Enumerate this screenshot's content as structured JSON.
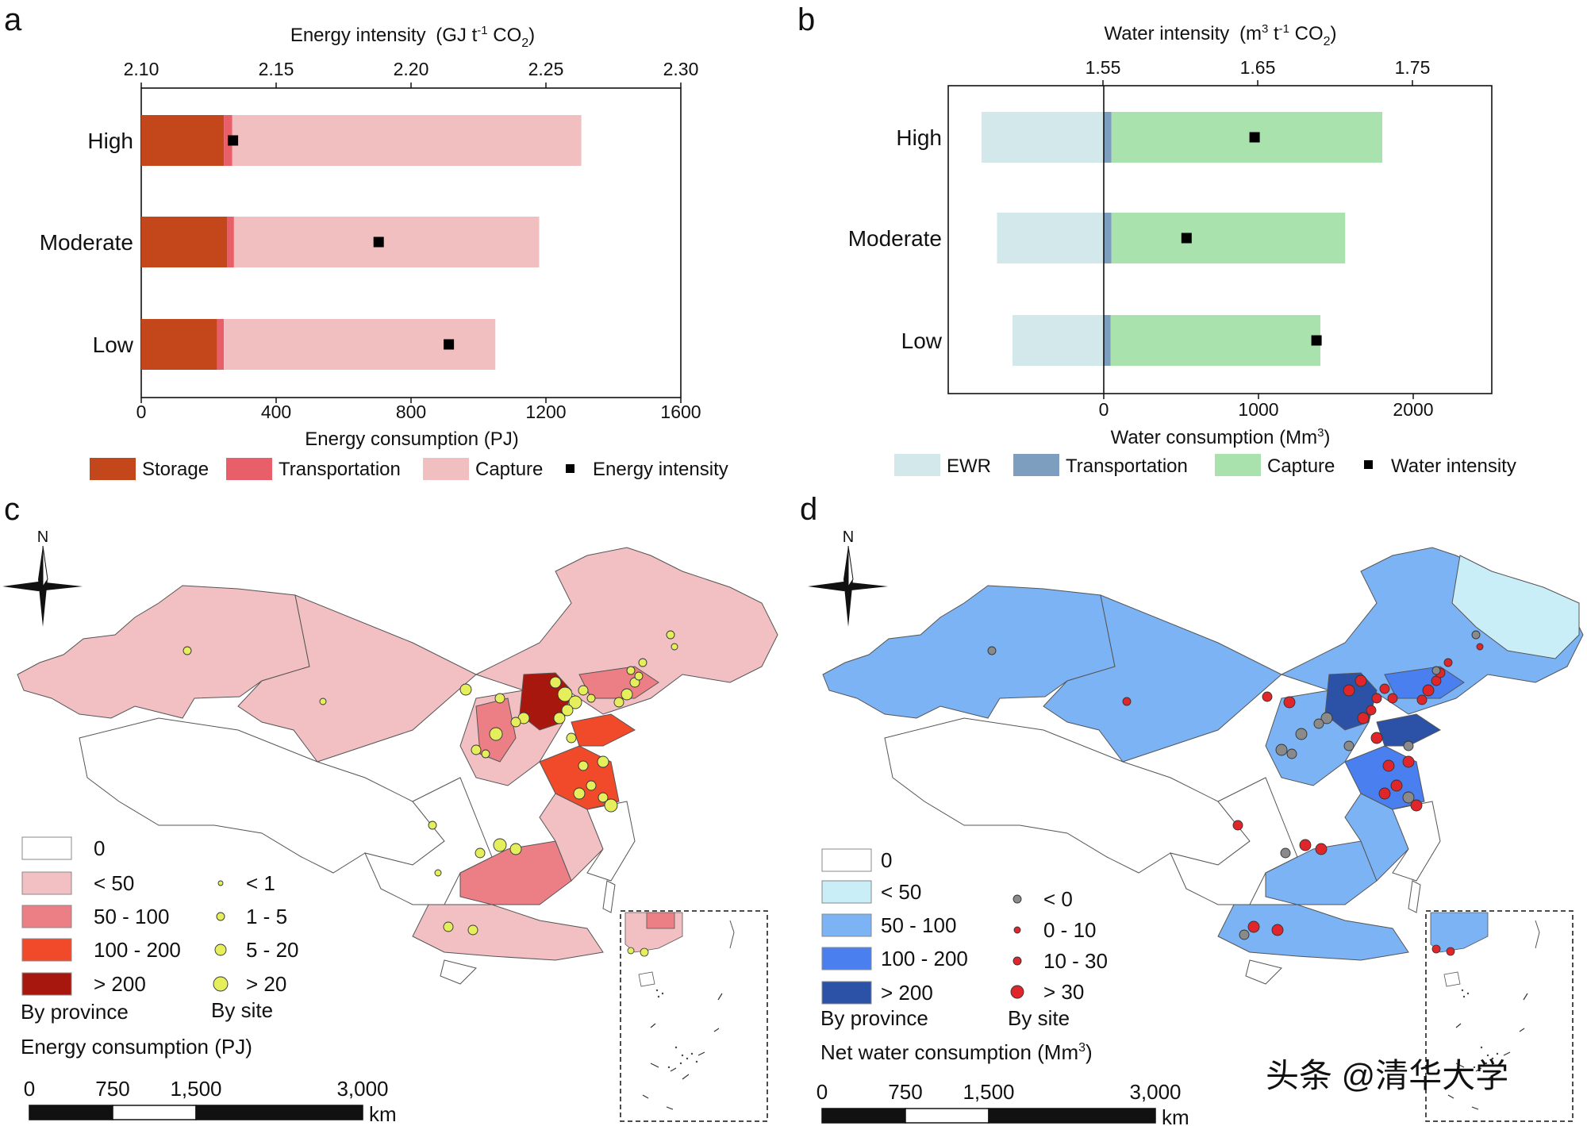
{
  "chart_data": [
    {
      "panel": "a",
      "type": "bar",
      "orientation": "horizontal",
      "stacked": true,
      "categories": [
        "High",
        "Moderate",
        "Low"
      ],
      "series": [
        {
          "name": "Storage",
          "color": "#c4471c",
          "values": [
            245,
            255,
            225
          ]
        },
        {
          "name": "Transportation",
          "color": "#e85f6a",
          "values": [
            25,
            20,
            20
          ]
        },
        {
          "name": "Capture",
          "color": "#f1bfc0",
          "values": [
            1035,
            905,
            805
          ]
        }
      ],
      "xlabel": "Energy consumption (PJ)",
      "xlim": [
        0,
        1600
      ],
      "xticks": [
        "0",
        "400",
        "800",
        "1200",
        "1600"
      ],
      "secondary_axis": {
        "label": "Energy intensity",
        "unit_text": "(GJ t",
        "unit_sup": "-1",
        "unit_tail": " CO",
        "unit_sub": "2",
        "unit_close": ")",
        "lim": [
          2.1,
          2.3
        ],
        "ticks": [
          "2.10",
          "2.15",
          "2.20",
          "2.25",
          "2.30"
        ]
      },
      "markers": {
        "name": "Energy intensity",
        "color": "#000000",
        "values": [
          2.134,
          2.188,
          2.214
        ]
      },
      "legend": [
        "Storage",
        "Transportation",
        "Capture",
        "Energy intensity"
      ]
    },
    {
      "panel": "b",
      "type": "bar",
      "orientation": "horizontal",
      "stacked": true,
      "categories": [
        "High",
        "Moderate",
        "Low"
      ],
      "series": [
        {
          "name": "EWR",
          "color": "#d2e8ea",
          "values": [
            -790,
            -690,
            -590
          ]
        },
        {
          "name": "Transportation",
          "color": "#7e9ec0",
          "values": [
            50,
            50,
            45
          ]
        },
        {
          "name": "Capture",
          "color": "#aae2ad",
          "values": [
            1750,
            1510,
            1355
          ]
        }
      ],
      "xlabel_text": "Water consumption (Mm",
      "xlabel_sup": "3",
      "xlabel_close": ")",
      "xlim": [
        -1000,
        2500
      ],
      "xticks": [
        "0",
        "1000",
        "2000"
      ],
      "secondary_axis": {
        "label": "Water intensity",
        "unit_text": "(m",
        "unit_sup": "3",
        "unit_mid": " t",
        "unit_sup2": "-1",
        "unit_tail": " CO",
        "unit_sub": "2",
        "unit_close": ")",
        "lim": [
          1.55,
          1.75
        ],
        "ticks": [
          "1.55",
          "1.65",
          "1.75"
        ]
      },
      "markers": {
        "name": "Water intensity",
        "color": "#000000",
        "values": [
          1.648,
          1.604,
          1.688
        ]
      },
      "legend": [
        "EWR",
        "Transportation",
        "Capture",
        "Water intensity"
      ]
    }
  ],
  "panels": {
    "a": "a",
    "b": "b",
    "c": "c",
    "d": "d"
  },
  "map_c": {
    "north": "N",
    "province_legend": [
      {
        "label": "0",
        "color": "#ffffff"
      },
      {
        "label": "< 50",
        "color": "#f2c0c3"
      },
      {
        "label": "50 - 100",
        "color": "#ec7f85"
      },
      {
        "label": "100 - 200",
        "color": "#f04a2a"
      },
      {
        "label": "> 200",
        "color": "#a8170d"
      }
    ],
    "site_legend": [
      {
        "label": "< 1"
      },
      {
        "label": "1 - 5"
      },
      {
        "label": "5 - 20"
      },
      {
        "label": "> 20"
      }
    ],
    "site_color": "#e5ef5c",
    "by_province": "By province",
    "by_site": "By site",
    "title": "Energy consumption (PJ)",
    "scale_ticks": [
      "0",
      "750",
      "1,500",
      "3,000"
    ],
    "scale_unit": "km"
  },
  "map_d": {
    "north": "N",
    "province_legend": [
      {
        "label": "0",
        "color": "#ffffff"
      },
      {
        "label": "< 50",
        "color": "#c9eef8"
      },
      {
        "label": "50 - 100",
        "color": "#7bb3f5"
      },
      {
        "label": "100 - 200",
        "color": "#4a7fef"
      },
      {
        "label": "> 200",
        "color": "#2c52a8"
      }
    ],
    "site_legend": [
      {
        "label": "< 0",
        "color": "#8a8a8a"
      },
      {
        "label": "0 - 10",
        "color": "#e0262a"
      },
      {
        "label": "10 - 30",
        "color": "#e0262a"
      },
      {
        "label": "> 30",
        "color": "#e0262a"
      }
    ],
    "by_province": "By province",
    "by_site": "By site",
    "title_text": "Net water consumption (Mm",
    "title_sup": "3",
    "title_close": ")",
    "scale_ticks": [
      "0",
      "750",
      "1,500",
      "3,000"
    ],
    "scale_unit": "km"
  },
  "watermark": "头条 @清华大学"
}
